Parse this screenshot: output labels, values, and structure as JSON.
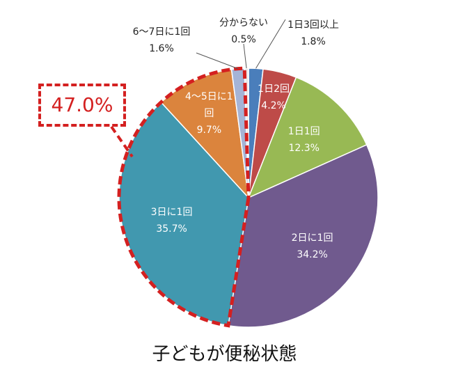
{
  "chart_data": {
    "type": "pie",
    "title": "子どもが便秘状態",
    "categories": [
      "1日3回以上",
      "1日2回",
      "1日1回",
      "2日に1回",
      "3日に1回",
      "4～5日に1回",
      "6～7日に1回",
      "分からない"
    ],
    "values": [
      1.8,
      4.2,
      12.3,
      34.2,
      35.7,
      9.7,
      1.6,
      0.5
    ],
    "value_labels": [
      "1.8%",
      "4.2%",
      "12.3%",
      "34.2%",
      "35.7%",
      "9.7%",
      "1.6%",
      "0.5%"
    ],
    "colors": [
      "#4a7ebb",
      "#be4b48",
      "#98b954",
      "#705a8e",
      "#4198af",
      "#db843d",
      "#a5b4d6",
      "#e8e8e8"
    ],
    "annotation": "47.0%"
  }
}
